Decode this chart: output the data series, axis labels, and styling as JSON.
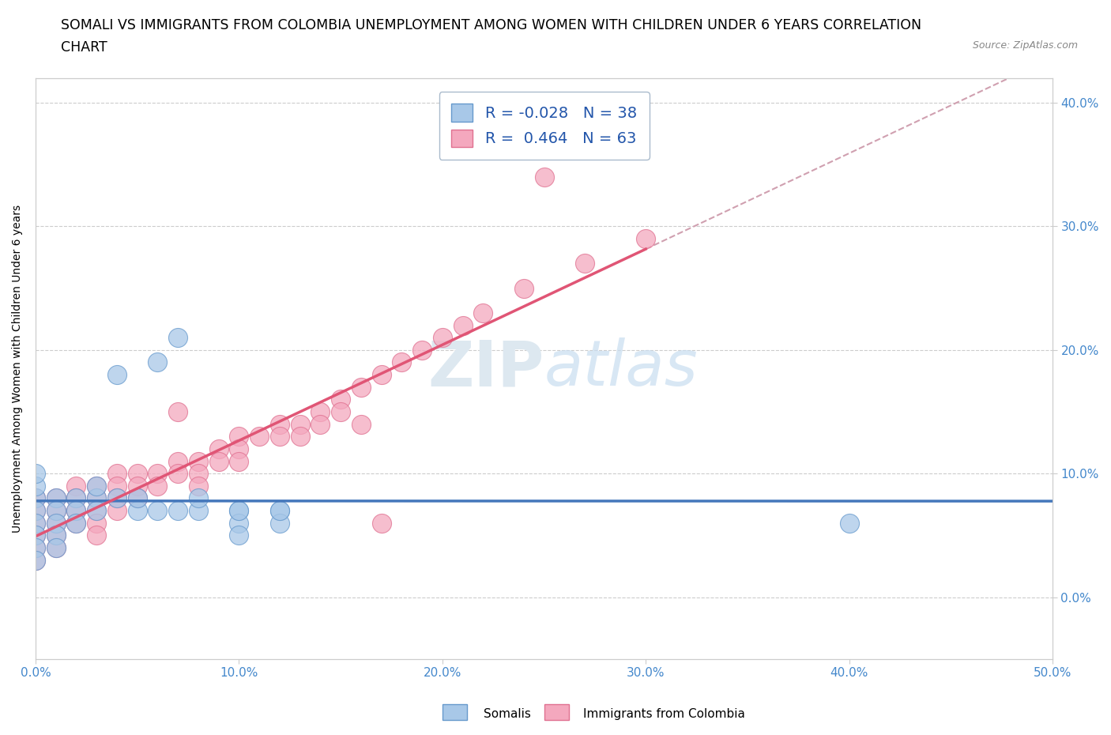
{
  "title_line1": "SOMALI VS IMMIGRANTS FROM COLOMBIA UNEMPLOYMENT AMONG WOMEN WITH CHILDREN UNDER 6 YEARS CORRELATION",
  "title_line2": "CHART",
  "source": "Source: ZipAtlas.com",
  "ylabel_label": "Unemployment Among Women with Children Under 6 years",
  "xlim": [
    0.0,
    0.5
  ],
  "ylim": [
    -0.05,
    0.42
  ],
  "somali_color": "#a8c8e8",
  "colombia_color": "#f4a8be",
  "somali_edge": "#6699cc",
  "colombia_edge": "#e07090",
  "regression_somali_color": "#4477bb",
  "regression_colombia_color": "#e05575",
  "regression_dashed_color": "#d0a0b0",
  "watermark_color": "#dde8f0",
  "grid_color": "#cccccc",
  "bg_color": "#ffffff",
  "title_fontsize": 12.5,
  "axis_label_fontsize": 10,
  "tick_fontsize": 11,
  "tick_color": "#4488cc",
  "somali_x": [
    0.0,
    0.0,
    0.0,
    0.0,
    0.0,
    0.0,
    0.0,
    0.0,
    0.01,
    0.01,
    0.01,
    0.01,
    0.01,
    0.02,
    0.02,
    0.02,
    0.03,
    0.03,
    0.03,
    0.04,
    0.04,
    0.05,
    0.05,
    0.06,
    0.06,
    0.07,
    0.07,
    0.08,
    0.08,
    0.1,
    0.1,
    0.1,
    0.1,
    0.12,
    0.12,
    0.12,
    0.4
  ],
  "somali_y": [
    0.08,
    0.07,
    0.06,
    0.05,
    0.04,
    0.03,
    0.09,
    0.1,
    0.08,
    0.07,
    0.06,
    0.05,
    0.04,
    0.08,
    0.07,
    0.06,
    0.08,
    0.07,
    0.09,
    0.08,
    0.18,
    0.07,
    0.08,
    0.07,
    0.19,
    0.07,
    0.21,
    0.07,
    0.08,
    0.07,
    0.06,
    0.05,
    0.07,
    0.07,
    0.06,
    0.07,
    0.06
  ],
  "colombia_x": [
    0.0,
    0.0,
    0.0,
    0.0,
    0.0,
    0.0,
    0.01,
    0.01,
    0.01,
    0.01,
    0.01,
    0.02,
    0.02,
    0.02,
    0.02,
    0.03,
    0.03,
    0.03,
    0.03,
    0.03,
    0.04,
    0.04,
    0.04,
    0.04,
    0.05,
    0.05,
    0.05,
    0.06,
    0.06,
    0.07,
    0.07,
    0.07,
    0.08,
    0.08,
    0.08,
    0.09,
    0.09,
    0.1,
    0.1,
    0.1,
    0.11,
    0.12,
    0.12,
    0.13,
    0.13,
    0.14,
    0.14,
    0.15,
    0.15,
    0.16,
    0.16,
    0.17,
    0.17,
    0.18,
    0.19,
    0.2,
    0.21,
    0.22,
    0.24,
    0.25,
    0.27,
    0.3
  ],
  "colombia_y": [
    0.08,
    0.07,
    0.06,
    0.05,
    0.04,
    0.03,
    0.08,
    0.07,
    0.06,
    0.05,
    0.04,
    0.09,
    0.08,
    0.07,
    0.06,
    0.09,
    0.08,
    0.07,
    0.06,
    0.05,
    0.1,
    0.09,
    0.08,
    0.07,
    0.1,
    0.09,
    0.08,
    0.1,
    0.09,
    0.11,
    0.1,
    0.15,
    0.11,
    0.1,
    0.09,
    0.12,
    0.11,
    0.13,
    0.12,
    0.11,
    0.13,
    0.14,
    0.13,
    0.14,
    0.13,
    0.15,
    0.14,
    0.16,
    0.15,
    0.17,
    0.14,
    0.18,
    0.06,
    0.19,
    0.2,
    0.21,
    0.22,
    0.23,
    0.25,
    0.34,
    0.27,
    0.29
  ]
}
